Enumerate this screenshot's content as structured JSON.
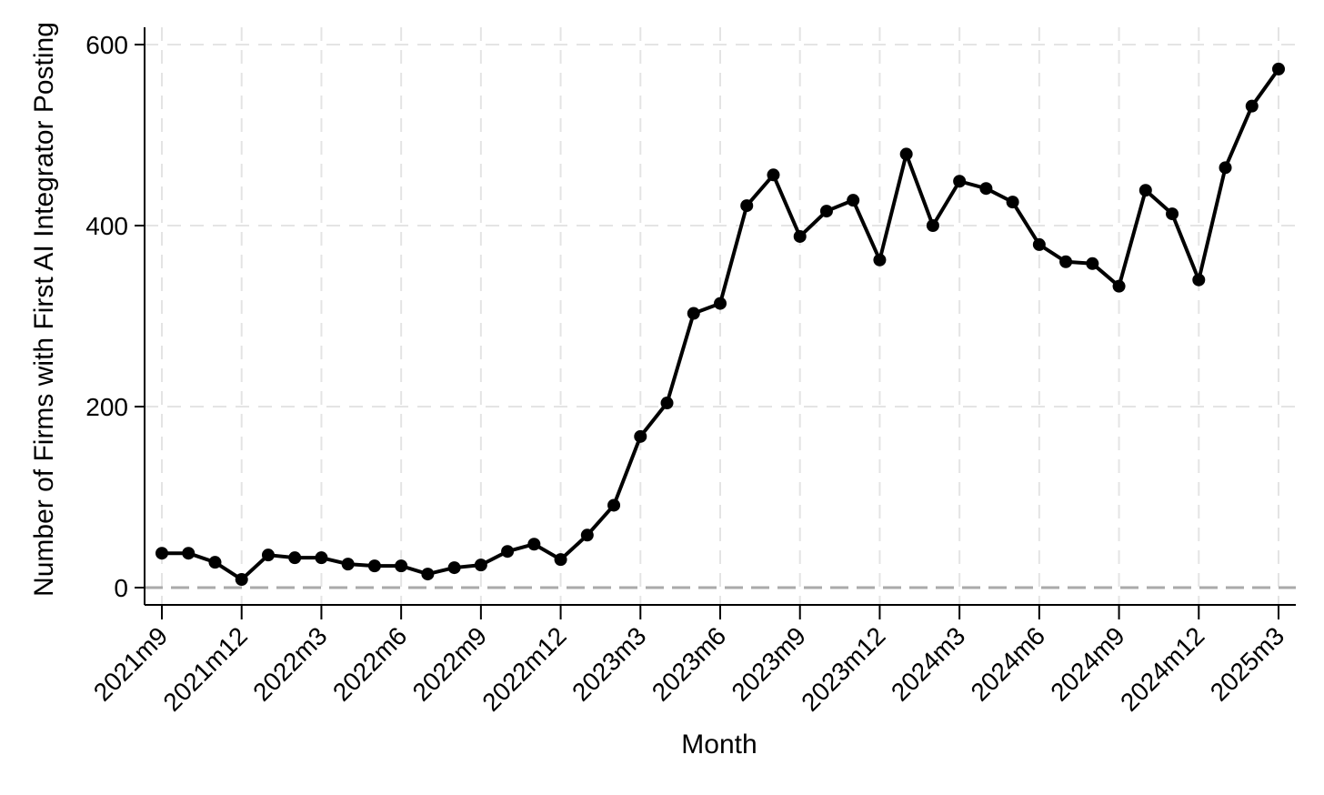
{
  "chart_data": {
    "type": "line",
    "title": "",
    "xlabel": "Month",
    "ylabel": "Number of Firms with First AI Integrator Posting",
    "x": [
      "2021m9",
      "2021m10",
      "2021m11",
      "2021m12",
      "2022m1",
      "2022m2",
      "2022m3",
      "2022m4",
      "2022m5",
      "2022m6",
      "2022m7",
      "2022m8",
      "2022m9",
      "2022m10",
      "2022m11",
      "2022m12",
      "2023m1",
      "2023m2",
      "2023m3",
      "2023m4",
      "2023m5",
      "2023m6",
      "2023m7",
      "2023m8",
      "2023m9",
      "2023m10",
      "2023m11",
      "2023m12",
      "2024m1",
      "2024m2",
      "2024m3",
      "2024m4",
      "2024m5",
      "2024m6",
      "2024m7",
      "2024m8",
      "2024m9",
      "2024m10",
      "2024m11",
      "2024m12",
      "2025m1",
      "2025m2",
      "2025m3"
    ],
    "series": [
      {
        "name": "Number of Firms with First AI Integrator Posting",
        "values": [
          38,
          38,
          28,
          9,
          36,
          33,
          33,
          26,
          24,
          24,
          15,
          22,
          25,
          40,
          48,
          31,
          58,
          91,
          167,
          204,
          303,
          314,
          422,
          456,
          388,
          416,
          428,
          362,
          479,
          400,
          449,
          441,
          426,
          379,
          360,
          358,
          333,
          439,
          413,
          340,
          464,
          532,
          573
        ]
      }
    ],
    "ylim": [
      0,
      600
    ],
    "yticks": [
      0,
      200,
      400,
      600
    ],
    "xtick_labels": [
      "2021m9",
      "2021m12",
      "2022m3",
      "2022m6",
      "2022m9",
      "2022m12",
      "2023m3",
      "2023m6",
      "2023m9",
      "2023m12",
      "2024m3",
      "2024m6",
      "2024m9",
      "2024m12",
      "2025m3"
    ],
    "xtick_label_rotation_deg": 45,
    "grid": true,
    "legend_position": "none",
    "marker": "circle",
    "line_color": "#000000",
    "marker_color": "#000000",
    "grid_color": "#e4e4e4",
    "zero_line_color": "#aaaaaa",
    "axis_color": "#000000",
    "background_color": "#ffffff"
  }
}
